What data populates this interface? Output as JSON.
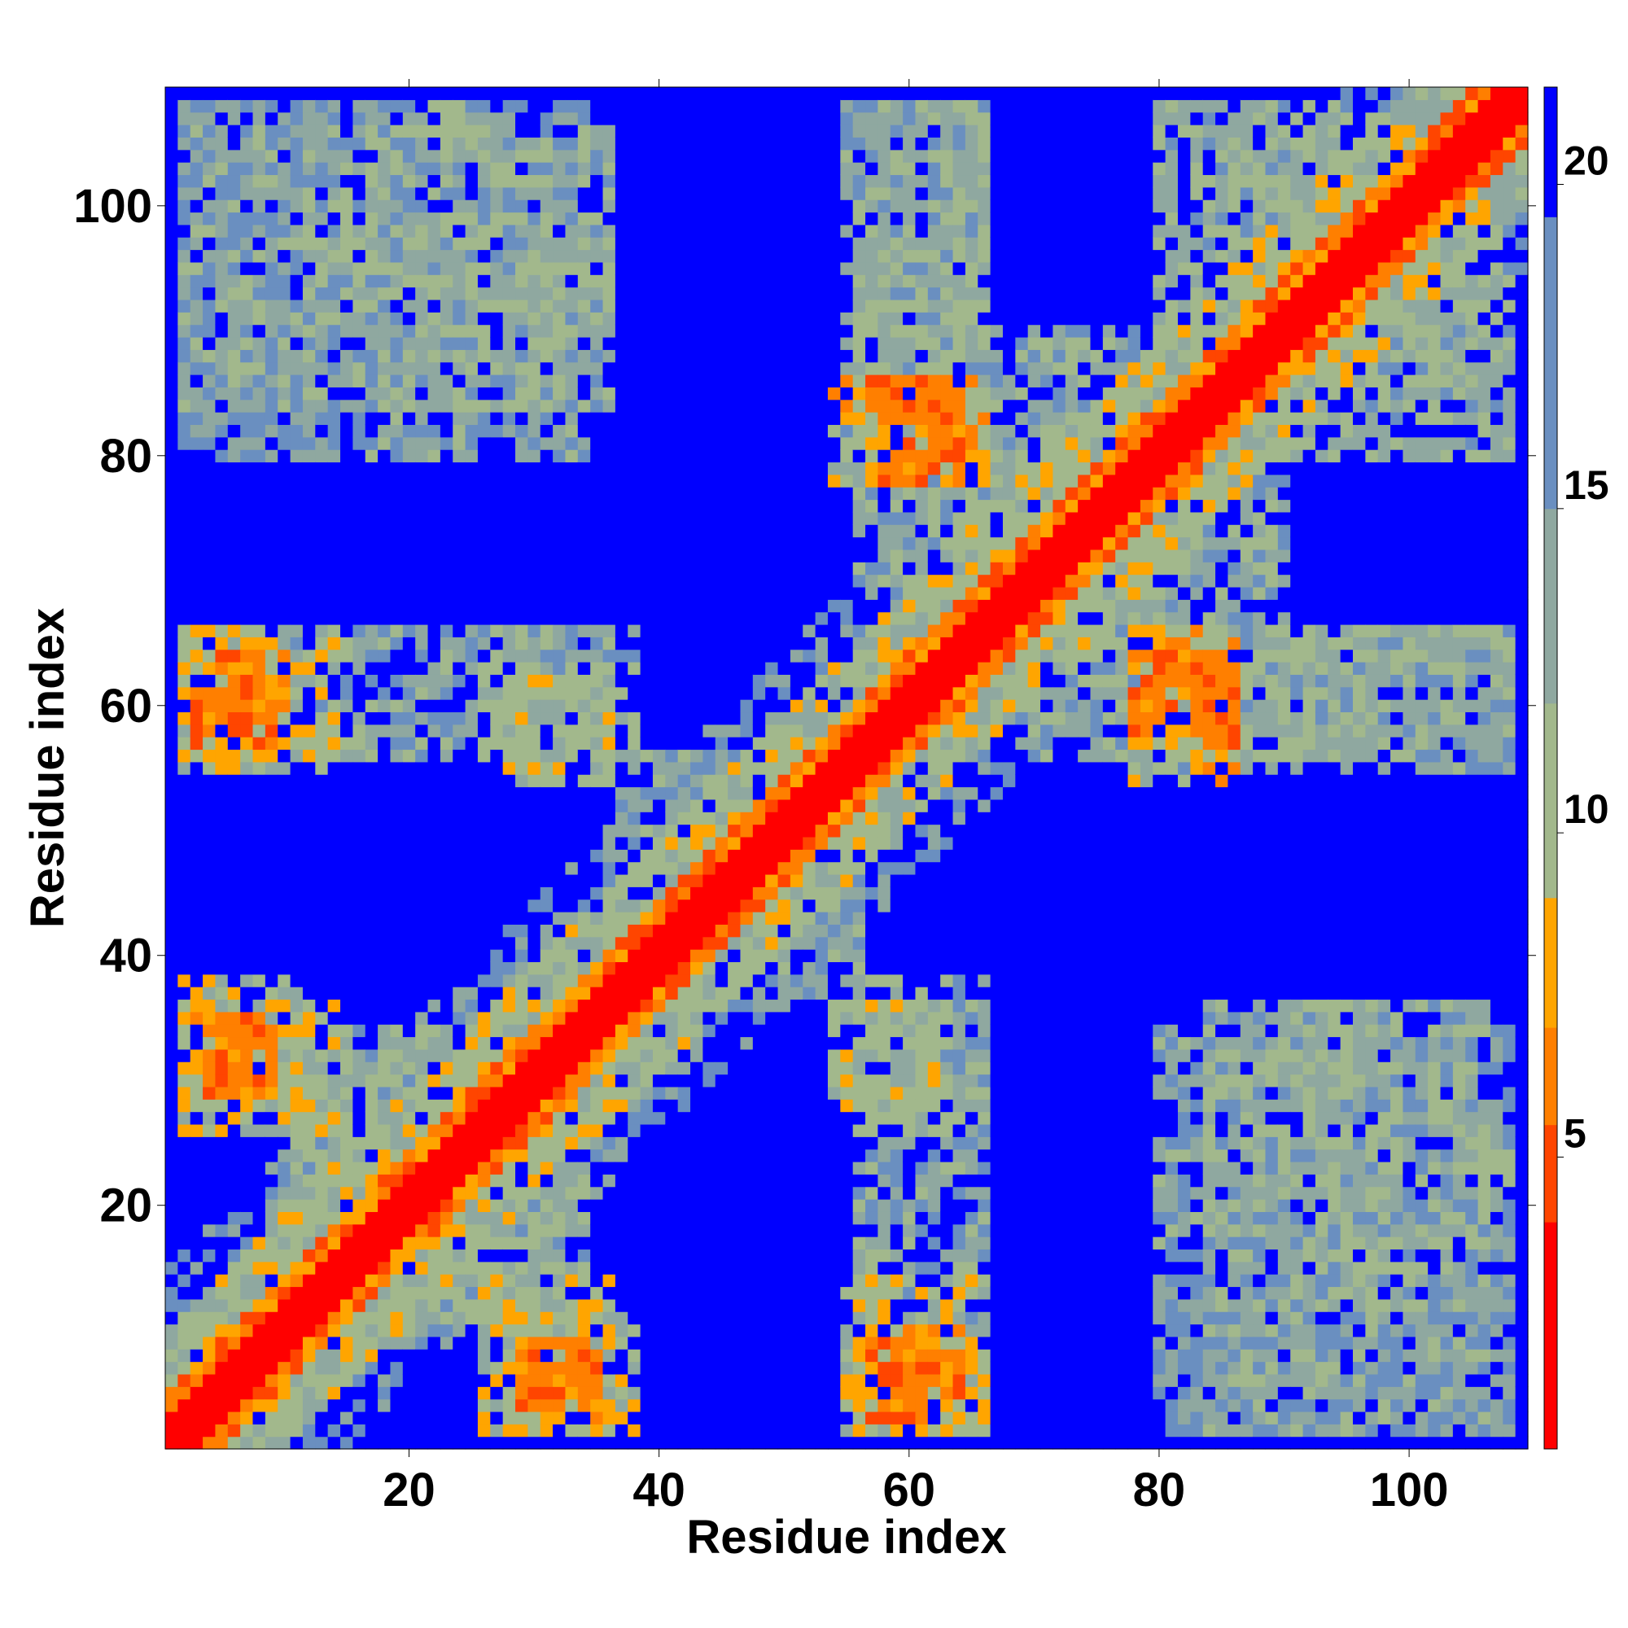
{
  "chart_data": {
    "type": "heatmap",
    "title": "",
    "xlabel": "Residue index",
    "ylabel": "Residue index",
    "xlim": [
      0.5,
      109.5
    ],
    "ylim": [
      0.5,
      109.5
    ],
    "xticks": [
      20,
      40,
      60,
      80,
      100
    ],
    "yticks": [
      20,
      40,
      60,
      80,
      100
    ],
    "xtick_labels": [
      "20",
      "40",
      "60",
      "80",
      "100"
    ],
    "ytick_labels": [
      "20",
      "40",
      "60",
      "80",
      "100"
    ],
    "n_residues": 109,
    "matrix_description": "symmetric residue-residue distance map",
    "colorbar": {
      "ticks": [
        5,
        10,
        15,
        20
      ],
      "tick_labels": [
        "5",
        "10",
        "15",
        "20"
      ],
      "range": [
        0.5,
        21.5
      ],
      "colors": [
        "#ff0000",
        "#ff4500",
        "#ff7f00",
        "#ffa500",
        "#a2b88c",
        "#8fa8a0",
        "#6a8fc0",
        "#0000ff"
      ],
      "levels": [
        0.5,
        4.0,
        5.5,
        7.0,
        9.0,
        12.0,
        15.0,
        19.5,
        21.5
      ]
    },
    "diagonal_band": {
      "red_within": 2,
      "orange_within": 4,
      "green_within": 9
    },
    "contact_blocks": [
      {
        "x": [
          2,
          12
        ],
        "y": [
          84,
          108
        ],
        "mean": 14
      },
      {
        "x": [
          12,
          36
        ],
        "y": [
          84,
          106
        ],
        "mean": 13
      },
      {
        "x": [
          30,
          36
        ],
        "y": [
          86,
          100
        ],
        "mean": 14
      },
      {
        "x": [
          55,
          66
        ],
        "y": [
          80,
          108
        ],
        "mean": 14
      },
      {
        "x": [
          54,
          66
        ],
        "y": [
          78,
          86
        ],
        "mean": 9
      },
      {
        "x": [
          80,
          108
        ],
        "y": [
          88,
          108
        ],
        "mean": 12
      },
      {
        "x": [
          2,
          10
        ],
        "y": [
          56,
          66
        ],
        "mean": 10
      },
      {
        "x": [
          10,
          36
        ],
        "y": [
          56,
          66
        ],
        "mean": 13
      },
      {
        "x": [
          28,
          36
        ],
        "y": [
          54,
          62
        ],
        "mean": 11
      },
      {
        "x": [
          78,
          108
        ],
        "y": [
          56,
          66
        ],
        "mean": 13
      },
      {
        "x": [
          2,
          12
        ],
        "y": [
          28,
          38
        ],
        "mean": 10
      },
      {
        "x": [
          10,
          32
        ],
        "y": [
          18,
          34
        ],
        "mean": 12
      },
      {
        "x": [
          55,
          66
        ],
        "y": [
          26,
          38
        ],
        "mean": 13
      },
      {
        "x": [
          80,
          108
        ],
        "y": [
          16,
          34
        ],
        "mean": 14
      },
      {
        "x": [
          26,
          36
        ],
        "y": [
          2,
          14
        ],
        "mean": 11
      },
      {
        "x": [
          55,
          66
        ],
        "y": [
          2,
          14
        ],
        "mean": 10
      },
      {
        "x": [
          80,
          108
        ],
        "y": [
          2,
          14
        ],
        "mean": 15
      },
      {
        "x": [
          70,
          90
        ],
        "y": [
          56,
          78
        ],
        "mean": 13
      },
      {
        "x": [
          36,
          50
        ],
        "y": [
          36,
          56
        ],
        "mean": 14
      },
      {
        "x": [
          64,
          80
        ],
        "y": [
          70,
          80
        ],
        "mean": 12
      }
    ],
    "close_contacts": [
      {
        "x": [
          3,
          10
        ],
        "y": [
          58,
          64
        ],
        "value": 6
      },
      {
        "x": [
          4,
          9
        ],
        "y": [
          29,
          35
        ],
        "value": 6
      },
      {
        "x": [
          29,
          35
        ],
        "y": [
          3,
          9
        ],
        "value": 6
      },
      {
        "x": [
          57,
          64
        ],
        "y": [
          3,
          10
        ],
        "value": 6
      },
      {
        "x": [
          58,
          64
        ],
        "y": [
          78,
          86
        ],
        "value": 6
      },
      {
        "x": [
          78,
          86
        ],
        "y": [
          57,
          64
        ],
        "value": 6
      }
    ]
  }
}
